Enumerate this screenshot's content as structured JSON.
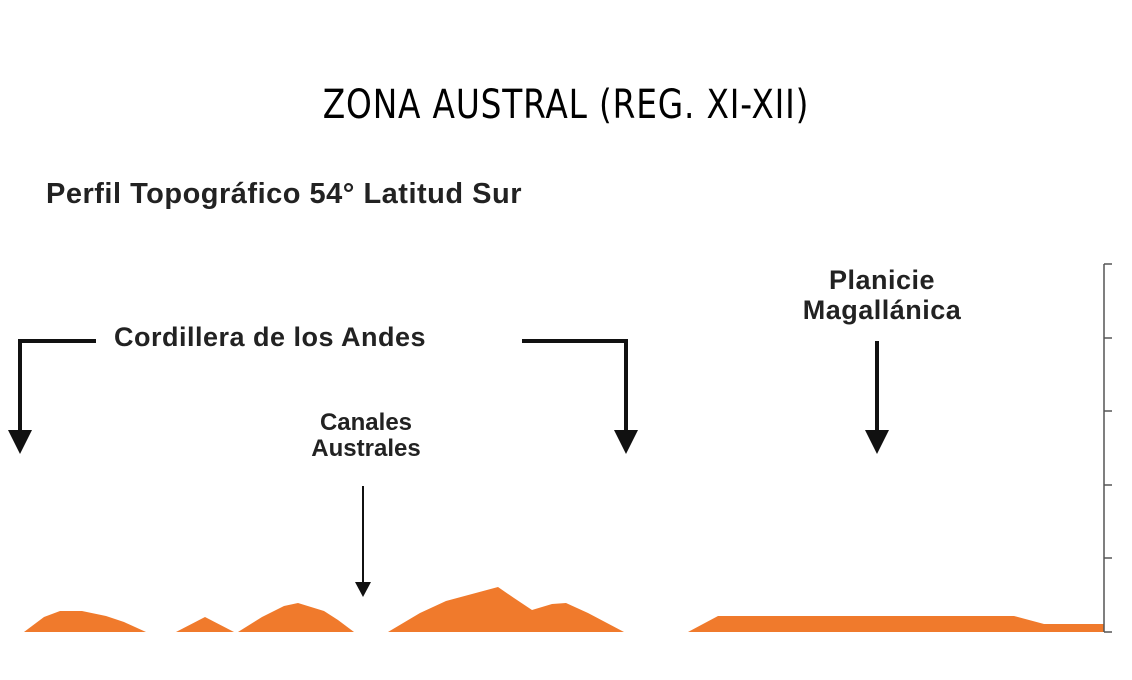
{
  "title": "ZONA AUSTRAL (REG. XI-XII)",
  "subtitle": "Perfil Topográfico 54° Latitud Sur",
  "labels": {
    "andes": "Cordillera de los Andes",
    "canales": [
      "Canales",
      "Australes"
    ],
    "planicie": [
      "Planicie",
      "Magallánica"
    ]
  },
  "colors": {
    "terrain": "#f07a2c",
    "text": "#222222",
    "arrow": "#111111",
    "axis": "#555555"
  }
}
